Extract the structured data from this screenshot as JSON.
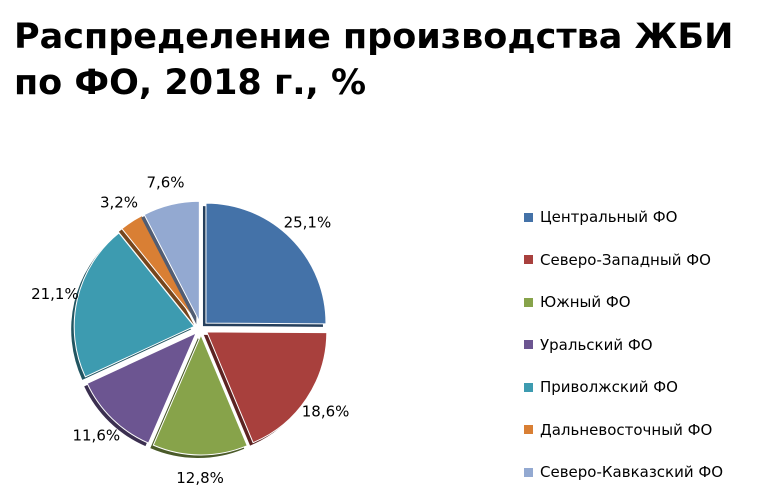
{
  "title": {
    "line1": "Распределение производства ЖБИ",
    "line2": "по ФО, 2018 г., %"
  },
  "chart_data": {
    "type": "pie",
    "title": "Распределение производства ЖБИ по ФО, 2018 г., %",
    "legend_position": "right",
    "exploded": true,
    "categories": [
      "Центральный ФО",
      "Северо-Западный ФО",
      "Южный ФО",
      "Уральский ФО",
      "Приволжский ФО",
      "Дальневосточный ФО",
      "Северо-Кавказский ФО"
    ],
    "values": [
      25.1,
      18.6,
      12.8,
      11.6,
      21.1,
      3.2,
      7.6
    ],
    "data_labels": [
      "25,1%",
      "18,6%",
      "12,8%",
      "11,6%",
      "21,1%",
      "3,2%",
      "7,6%"
    ],
    "colors": [
      "#4472a8",
      "#a8403d",
      "#87a34a",
      "#6c5591",
      "#3d9bb0",
      "#d97f34",
      "#93a9d1"
    ]
  }
}
